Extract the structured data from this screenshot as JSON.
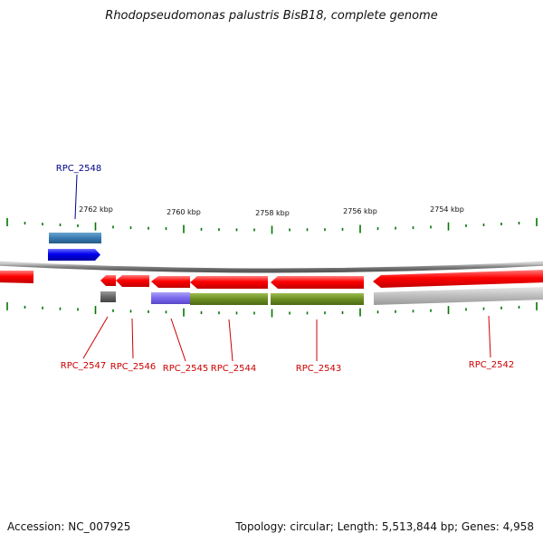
{
  "title": "Rhodopseudomonas palustris BisB18, complete genome",
  "footer": {
    "accession": "Accession: NC_007925",
    "summary": "Topology: circular; Length: 5,513,844 bp; Genes: 4,958"
  },
  "scale": {
    "tick_labels": [
      "2762 kbp",
      "2760 kbp",
      "2758 kbp",
      "2756 kbp",
      "2754 kbp"
    ]
  },
  "colors": {
    "reverse_gene": "#ff0000",
    "forward_gene": "#0000ee",
    "forward_label": "#00008b",
    "reverse_label": "#cc0000",
    "tick": "#007700",
    "backbone": "#888888",
    "protein_a": "#6b8e23",
    "protein_b": "#7b68ee",
    "protein_c": "#3a7ab0",
    "protein_d": "#bbbbbb",
    "protein_e": "#666666"
  },
  "genes": [
    {
      "id": "RPC_2548",
      "strand": "forward"
    },
    {
      "id": "RPC_2547",
      "strand": "reverse"
    },
    {
      "id": "RPC_2546",
      "strand": "reverse"
    },
    {
      "id": "RPC_2545",
      "strand": "reverse"
    },
    {
      "id": "RPC_2544",
      "strand": "reverse"
    },
    {
      "id": "RPC_2543",
      "strand": "reverse"
    },
    {
      "id": "RPC_2542",
      "strand": "reverse"
    }
  ]
}
